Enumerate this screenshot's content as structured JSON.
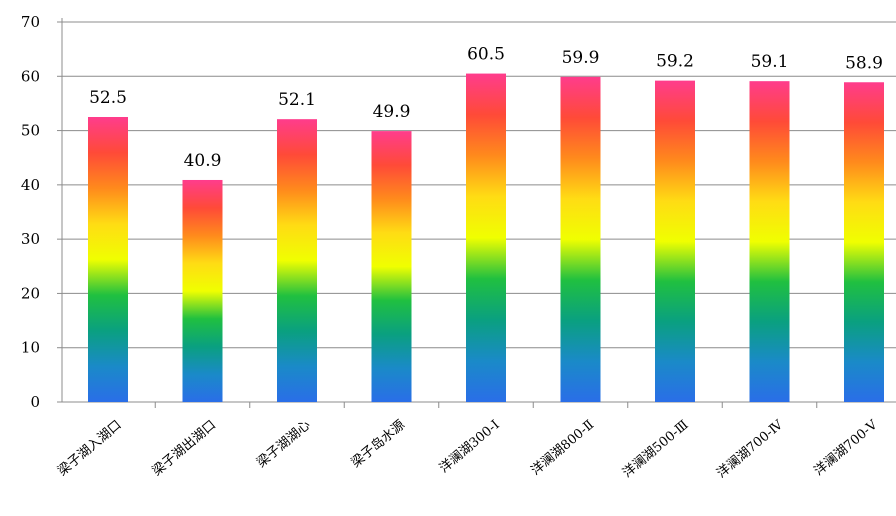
{
  "chart_data": {
    "type": "bar",
    "title": "",
    "xlabel": "",
    "ylabel": "",
    "categories": [
      "梁子湖入湖口",
      "梁子湖出湖口",
      "梁子湖湖心",
      "梁子岛水源",
      "洋澜湖300-Ⅰ",
      "洋澜湖800-Ⅱ",
      "洋澜湖500-Ⅲ",
      "洋澜湖700-Ⅳ",
      "洋澜湖700-Ⅴ"
    ],
    "values": [
      52.5,
      40.9,
      52.1,
      49.9,
      60.5,
      59.9,
      59.2,
      59.1,
      58.9
    ],
    "data_labels": [
      "52.5",
      "40.9",
      "52.1",
      "49.9",
      "60.5",
      "59.9",
      "59.2",
      "59.1",
      "58.9"
    ],
    "ylim": [
      0,
      70
    ],
    "yticks": [
      0,
      10,
      20,
      30,
      40,
      50,
      60,
      70
    ],
    "grid": true,
    "bar_gradient": [
      "#ff3c8c",
      "#ff4a38",
      "#ff8a1c",
      "#ffdc14",
      "#f0ff00",
      "#20c040",
      "#0aa080",
      "#1a8ac8",
      "#2a6ee8"
    ]
  }
}
